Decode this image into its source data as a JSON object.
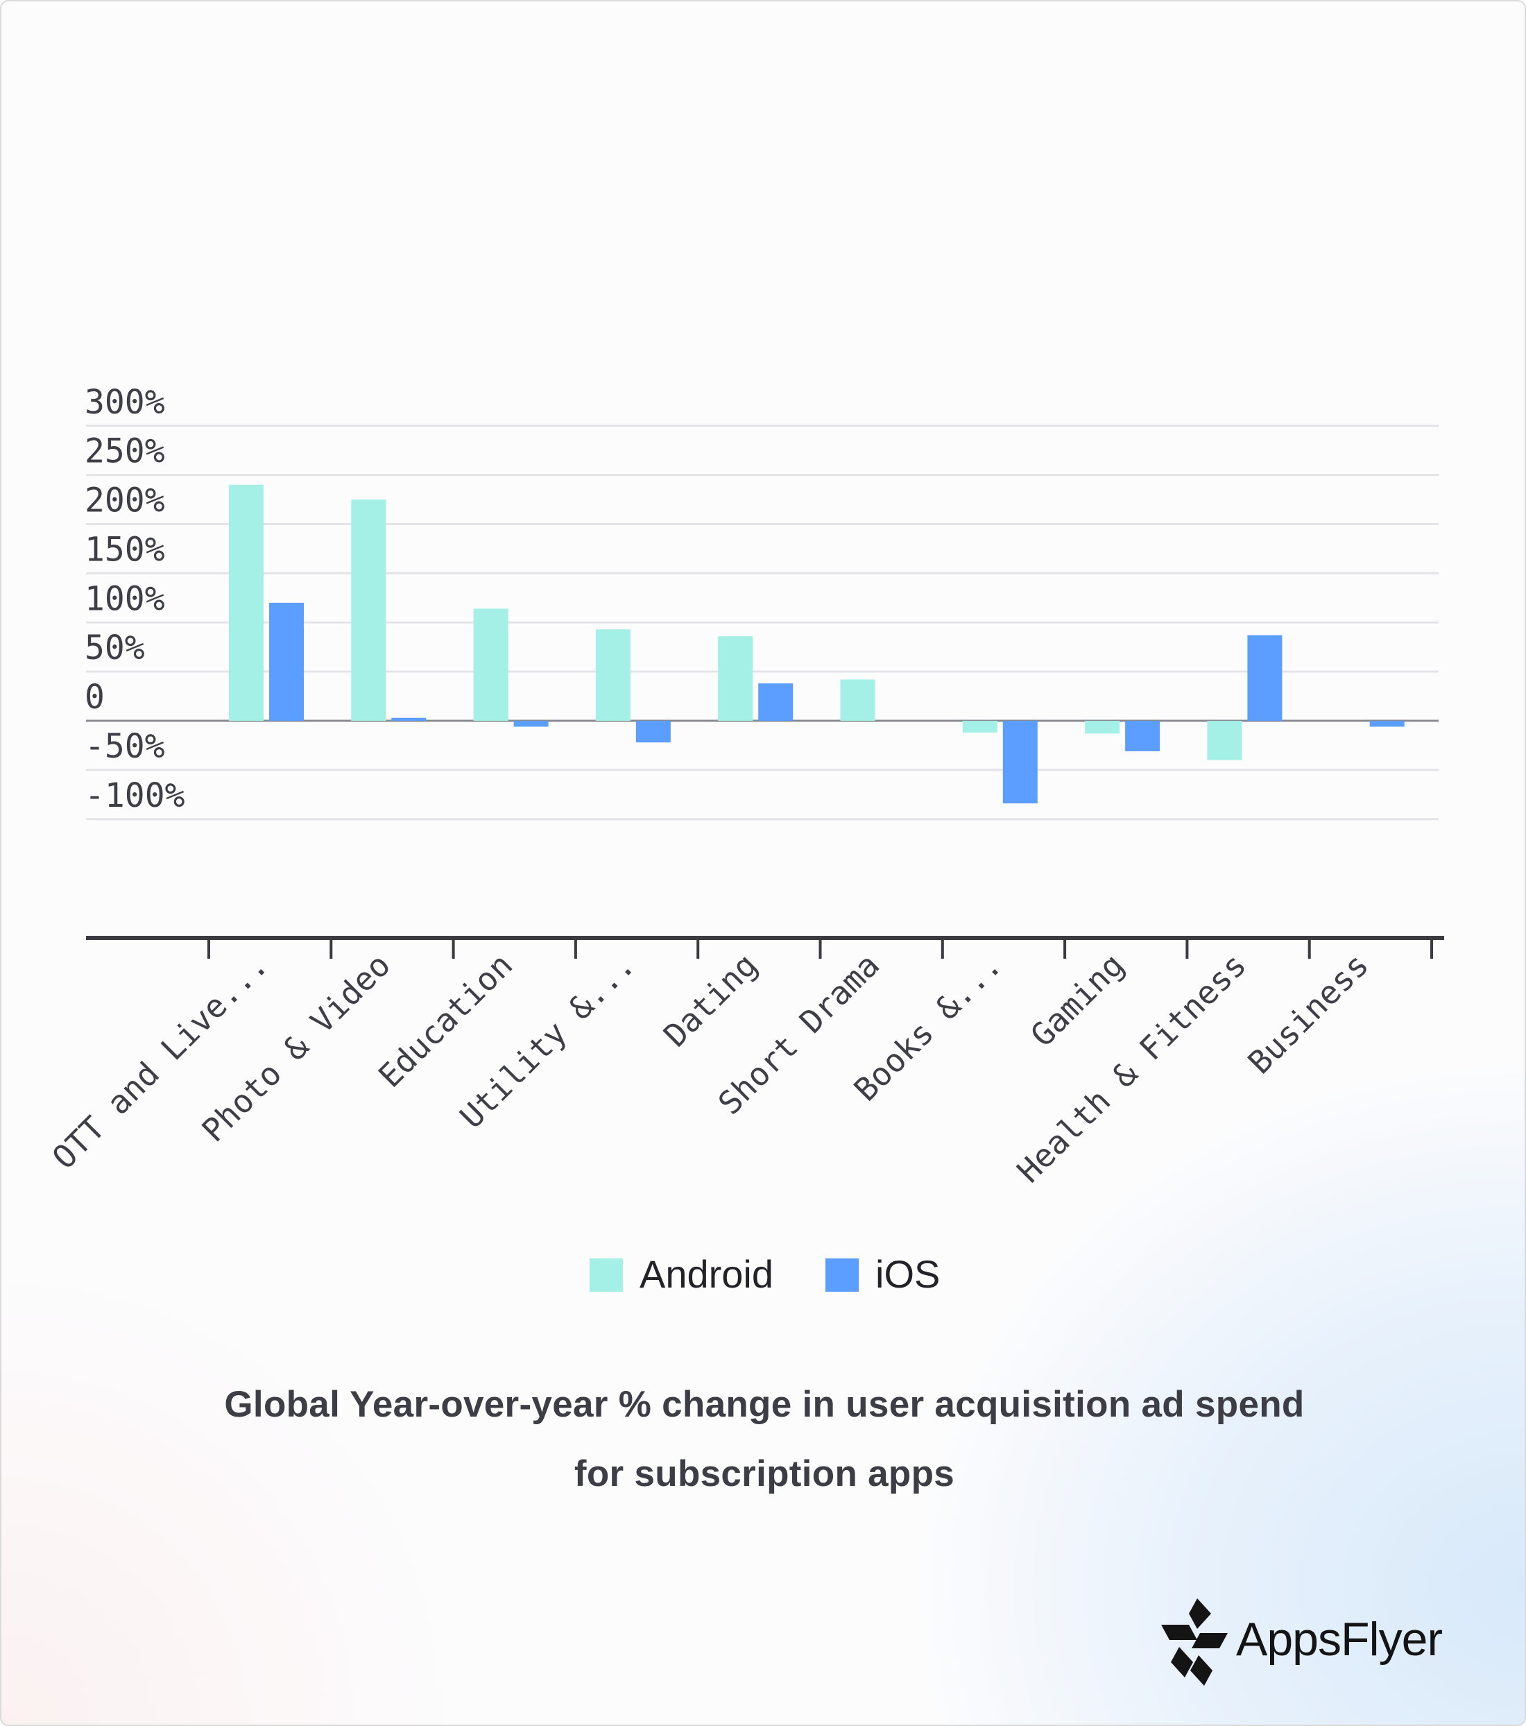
{
  "chart_data": {
    "type": "bar",
    "title": "Global Year-over-year % change in user acquisition ad spend for subscription apps",
    "xlabel": "",
    "ylabel": "",
    "categories": [
      "OTT and Live...",
      "Photo & Video",
      "Education",
      "Utility &...",
      "Dating",
      "Short Drama",
      "Books &...",
      "Gaming",
      "Health & Fitness",
      "Business"
    ],
    "series": [
      {
        "name": "Android",
        "color": "#a5f0e6",
        "values": [
          240,
          225,
          114,
          93,
          86,
          42,
          -12,
          -13,
          -40,
          null
        ]
      },
      {
        "name": "iOS",
        "color": "#5b9eff",
        "values": [
          120,
          3,
          -6,
          -22,
          38,
          null,
          -84,
          -31,
          87,
          -6
        ]
      }
    ],
    "ylim": [
      -100,
      300
    ],
    "yticks": [
      300,
      250,
      200,
      150,
      100,
      50,
      0,
      -50,
      -100
    ],
    "ytick_labels": [
      "300%",
      "250%",
      "200%",
      "150%",
      "100%",
      "50%",
      "0",
      "-50%",
      "-100%"
    ],
    "grid": true,
    "legend": "bottom-center"
  },
  "caption": {
    "line1": "Global Year-over-year % change in user acquisition ad spend",
    "line2": "for subscription apps"
  },
  "brand": {
    "name": "AppsFlyer"
  }
}
